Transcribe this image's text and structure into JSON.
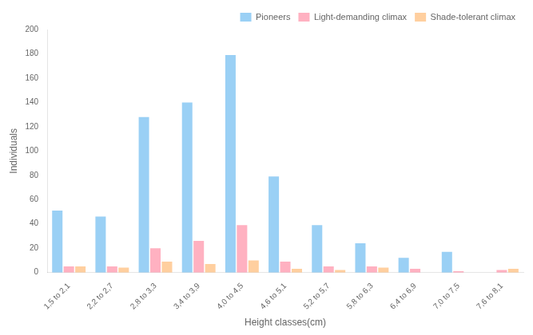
{
  "chart_data": {
    "type": "bar",
    "categories": [
      "1,5 to 2,1",
      "2,2 to 2,7",
      "2,8 to 3,3",
      "3,4 to 3,9",
      "4,0 to 4,5",
      "4,6 to 5,1",
      "5,2 to 5,7",
      "5,8 to 6,3",
      "6,4 to 6,9",
      "7,0 to 7,5",
      "7,6 to 8,1"
    ],
    "series": [
      {
        "name": "Pioneers",
        "values": [
          51,
          46,
          128,
          140,
          179,
          79,
          39,
          24,
          12,
          17,
          0
        ]
      },
      {
        "name": "Light-demanding climax",
        "values": [
          5,
          5,
          20,
          26,
          39,
          9,
          5,
          5,
          3,
          1,
          2
        ]
      },
      {
        "name": "Shade-tolerant climax",
        "values": [
          5,
          4,
          9,
          7,
          10,
          3,
          2,
          4,
          0,
          0,
          3
        ]
      }
    ],
    "xlabel": "Height classes(cm)",
    "ylabel": "Individuals",
    "ylim": [
      0,
      200
    ],
    "yticks": [
      0,
      20,
      40,
      60,
      80,
      100,
      120,
      140,
      160,
      180,
      200
    ],
    "grid": false,
    "legend": "upper right"
  }
}
